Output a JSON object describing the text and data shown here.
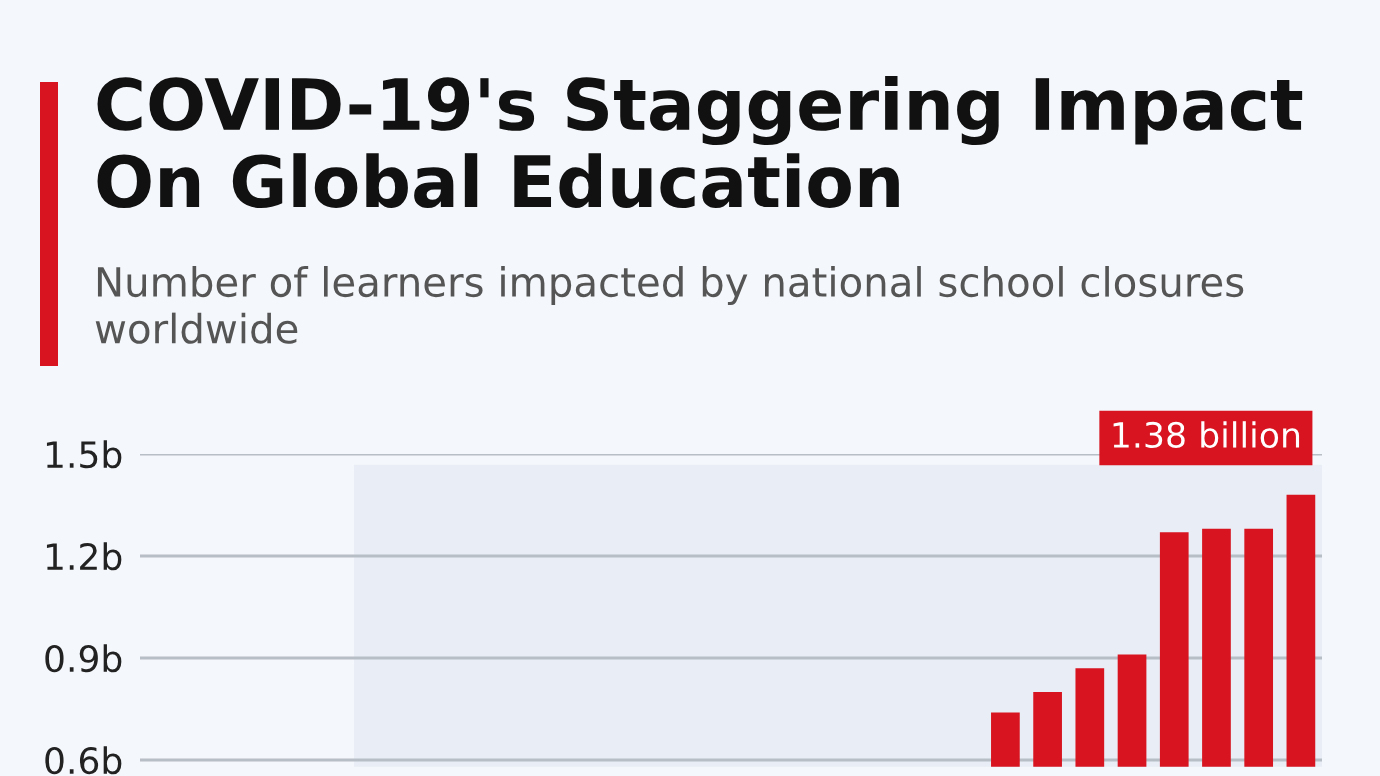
{
  "chart_data": {
    "type": "bar",
    "title": "COVID-19's Staggering Impact\nOn Global Education",
    "subtitle": "Number of learners impacted by national school closures\nworldwide",
    "categories": [
      null,
      null,
      null,
      null,
      null,
      null,
      null,
      null,
      null,
      null,
      null,
      null,
      null,
      null,
      null,
      null,
      null,
      null,
      null,
      null,
      null,
      null,
      null,
      null,
      null,
      null,
      null,
      null
    ],
    "values": [
      null,
      null,
      null,
      null,
      null,
      null,
      null,
      null,
      null,
      null,
      null,
      null,
      null,
      null,
      null,
      null,
      null,
      null,
      null,
      null,
      0.74,
      0.8,
      0.87,
      0.91,
      1.27,
      1.28,
      1.28,
      1.38
    ],
    "color": "#d7141f",
    "ylim": [
      0.58,
      1.5
    ],
    "yticks": [
      {
        "value": 0.6,
        "label": "0.6b"
      },
      {
        "value": 0.9,
        "label": "0.9b"
      },
      {
        "value": 1.2,
        "label": "1.2b"
      },
      {
        "value": 1.5,
        "label": "1.5b"
      }
    ],
    "grid": "y",
    "annotations": [
      "1.38 billion"
    ]
  }
}
